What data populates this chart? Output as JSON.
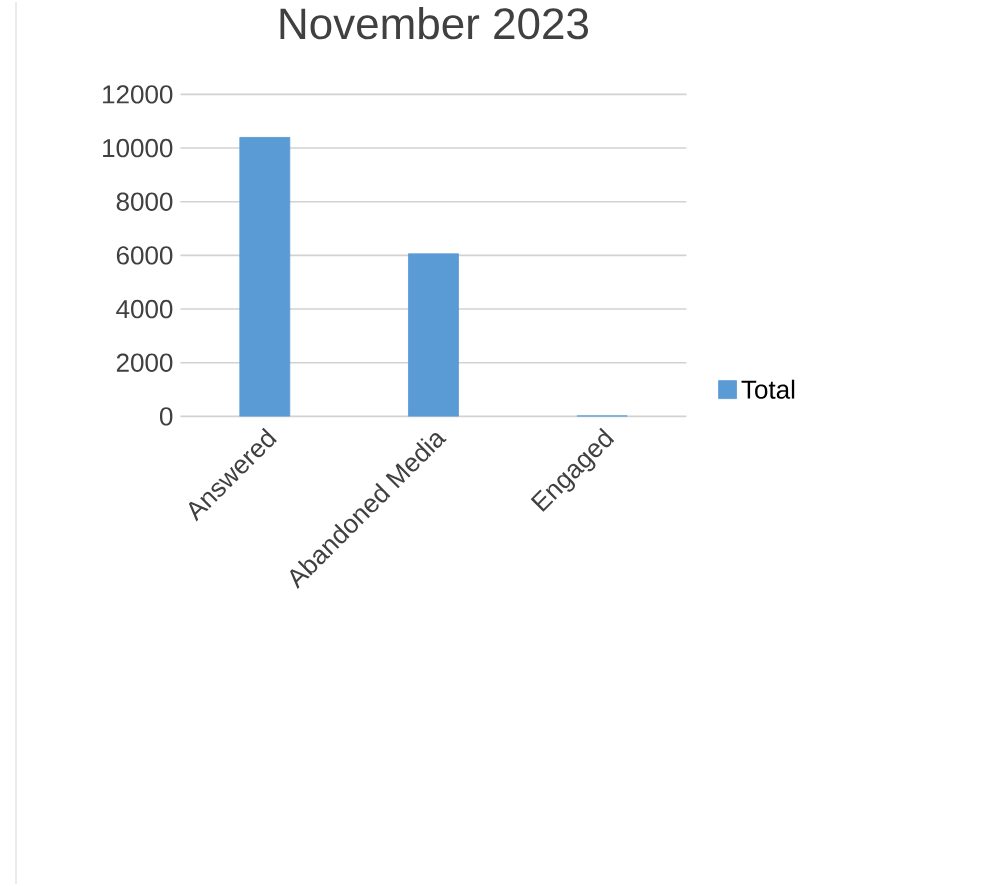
{
  "chart_data": {
    "type": "bar",
    "title": "November 2023",
    "categories": [
      "Answered",
      "Abandoned Media",
      "Engaged"
    ],
    "series": [
      {
        "name": "Total",
        "color": "#5b9bd5",
        "values": [
          10400,
          6060,
          20
        ]
      }
    ],
    "ylim": [
      0,
      12000
    ],
    "yticks": [
      0,
      2000,
      4000,
      6000,
      8000,
      10000,
      12000
    ],
    "grid": "y",
    "legend": "right"
  }
}
